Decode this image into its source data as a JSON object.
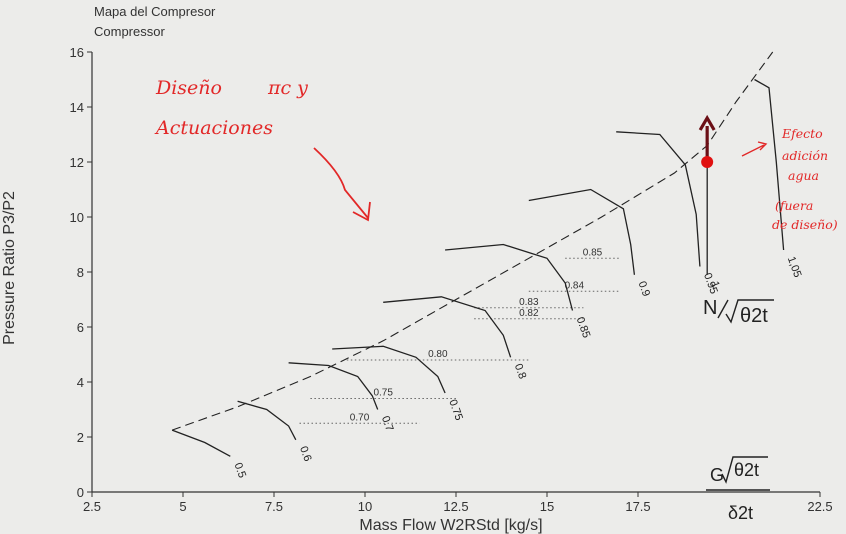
{
  "chart_data": {
    "type": "line",
    "title": "Mapa del Compresor",
    "subtitle": "Compressor",
    "xlabel": "Mass Flow W2RStd [kg/s]",
    "ylabel": "Pressure Ratio P3/P2",
    "xlim": [
      2.5,
      22.5
    ],
    "ylim": [
      0,
      16
    ],
    "x_ticks": [
      "2.5",
      "5",
      "7.5",
      "10",
      "12.5",
      "15",
      "17.5",
      "22.5"
    ],
    "y_ticks": [
      "0",
      "2",
      "4",
      "6",
      "8",
      "10",
      "12",
      "14",
      "16"
    ],
    "grid": false,
    "surge_line": {
      "x": [
        4.7,
        6.5,
        8.5,
        10.5,
        12.5,
        14.5,
        16.5,
        18.5,
        19.4,
        20.2,
        21.2
      ],
      "y": [
        2.25,
        3.1,
        4.2,
        5.5,
        7.0,
        8.5,
        10.0,
        11.6,
        12.6,
        14.2,
        16.0
      ]
    },
    "speed_lines": [
      {
        "label": "0.5",
        "x": [
          4.7,
          5.6,
          6.3
        ],
        "y": [
          2.25,
          1.8,
          1.3
        ]
      },
      {
        "label": "0.6",
        "x": [
          6.5,
          7.3,
          7.9,
          8.1
        ],
        "y": [
          3.3,
          3.0,
          2.4,
          1.9
        ]
      },
      {
        "label": "0.7",
        "x": [
          7.9,
          9.0,
          9.8,
          10.2,
          10.35
        ],
        "y": [
          4.7,
          4.6,
          4.2,
          3.5,
          3.0
        ]
      },
      {
        "label": "0.75",
        "x": [
          9.1,
          10.5,
          11.4,
          12.0,
          12.2
        ],
        "y": [
          5.2,
          5.3,
          4.9,
          4.2,
          3.6
        ]
      },
      {
        "label": "0.8",
        "x": [
          10.5,
          12.1,
          13.3,
          13.8,
          14.0
        ],
        "y": [
          6.9,
          7.1,
          6.6,
          5.7,
          4.9
        ]
      },
      {
        "label": "0.85",
        "x": [
          12.2,
          13.8,
          15.0,
          15.5,
          15.7
        ],
        "y": [
          8.8,
          9.0,
          8.5,
          7.6,
          6.6
        ]
      },
      {
        "label": "0.9",
        "x": [
          14.5,
          16.2,
          17.1,
          17.3,
          17.4
        ],
        "y": [
          10.6,
          11.0,
          10.3,
          9.0,
          7.9
        ]
      },
      {
        "label": "0.95",
        "x": [
          16.9,
          18.1,
          18.8,
          19.1,
          19.2
        ],
        "y": [
          13.1,
          13.0,
          11.9,
          10.1,
          8.2
        ]
      },
      {
        "label": "1",
        "x": [
          19.4,
          19.4
        ],
        "y": [
          12.6,
          7.9
        ]
      },
      {
        "label": "1,05",
        "x": [
          20.7,
          21.1,
          21.3,
          21.5
        ],
        "y": [
          15.0,
          14.7,
          12.0,
          8.8
        ]
      }
    ],
    "efficiency_islands": [
      {
        "label": "0.70",
        "x": [
          8.2,
          11.5
        ],
        "y": [
          2.5,
          2.5
        ]
      },
      {
        "label": "0.75",
        "x": [
          8.5,
          12.5
        ],
        "y": [
          3.4,
          3.4
        ]
      },
      {
        "label": "0.80",
        "x": [
          9.5,
          14.5
        ],
        "y": [
          4.8,
          4.8
        ]
      },
      {
        "label": "0.82",
        "x": [
          13.0,
          16.0
        ],
        "y": [
          6.3,
          6.3
        ]
      },
      {
        "label": "0.83",
        "x": [
          13.0,
          16.0
        ],
        "y": [
          6.7,
          6.7
        ]
      },
      {
        "label": "0.84",
        "x": [
          14.5,
          17.0
        ],
        "y": [
          7.3,
          7.3
        ]
      },
      {
        "label": "0.85",
        "x": [
          15.5,
          17.0
        ],
        "y": [
          8.5,
          8.5
        ]
      }
    ],
    "design_point": {
      "x": 19.4,
      "y": 12.0
    },
    "arrow_to": {
      "x": 19.4,
      "y": 13.6
    },
    "annotations": {
      "design": [
        "Diseño",
        "πc y",
        "Actuaciones"
      ],
      "water": [
        "Efecto",
        "adición",
        "agua",
        "(fuera",
        "de diseño)"
      ],
      "speed_symbol": {
        "letter": "N",
        "theta": "θ2t"
      },
      "flow_symbol": {
        "letter": "G",
        "theta": "θ2t",
        "delta": "δ2t"
      }
    },
    "colors": {
      "background": "#ececea",
      "axes": "#333333",
      "lines": "#222222",
      "dotted": "#666666",
      "annotation": "#e22828",
      "arrow": "#6b0f16",
      "point": "#e01010"
    }
  }
}
